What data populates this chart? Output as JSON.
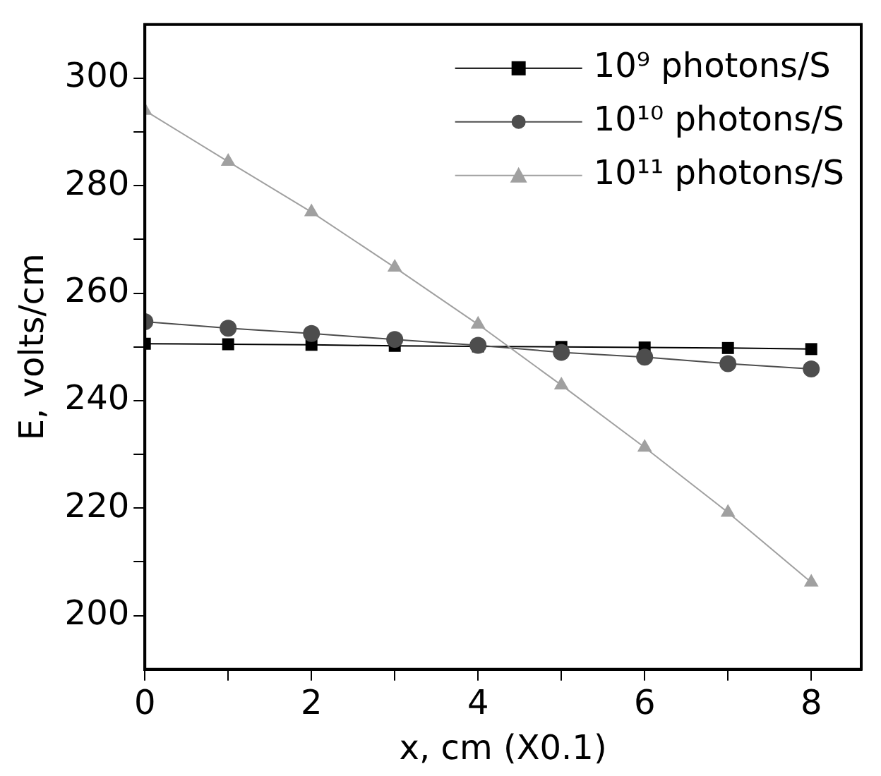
{
  "chart_data": {
    "type": "line",
    "xlabel": "x, cm (X0.1)",
    "ylabel": "E, volts/cm",
    "x": [
      0,
      1,
      2,
      3,
      4,
      5,
      6,
      7,
      8
    ],
    "xlim": [
      0,
      8.6
    ],
    "xticks": [
      0,
      {
        "value": 1,
        "label": null
      },
      2,
      {
        "value": 3,
        "label": null
      },
      4,
      {
        "value": 5,
        "label": null
      },
      6,
      {
        "value": 7,
        "label": null
      },
      8
    ],
    "ylim": [
      190,
      310
    ],
    "yticks": [
      200,
      {
        "value": 210,
        "label": null
      },
      220,
      {
        "value": 230,
        "label": null
      },
      240,
      {
        "value": 250,
        "label": null
      },
      260,
      {
        "value": 270,
        "label": null
      },
      280,
      {
        "value": 290,
        "label": null
      },
      300
    ],
    "grid": false,
    "legend": "top right",
    "line_style": "solid",
    "series": [
      {
        "name": "10⁹ photons/S",
        "color": "#000000",
        "marker": "square",
        "values": [
          250.6,
          250.5,
          250.4,
          250.2,
          250.1,
          250.0,
          249.9,
          249.8,
          249.6
        ]
      },
      {
        "name": "10¹⁰ photons/S",
        "color": "#4d4d4d",
        "marker": "circle",
        "values": [
          254.7,
          253.5,
          252.5,
          251.4,
          250.3,
          249.0,
          248.1,
          246.9,
          245.9
        ]
      },
      {
        "name": "10¹¹ photons/S",
        "color": "#a0a0a0",
        "marker": "triangle",
        "values": [
          294.0,
          284.5,
          275.1,
          264.8,
          254.2,
          242.9,
          231.3,
          219.2,
          206.2
        ]
      }
    ]
  }
}
